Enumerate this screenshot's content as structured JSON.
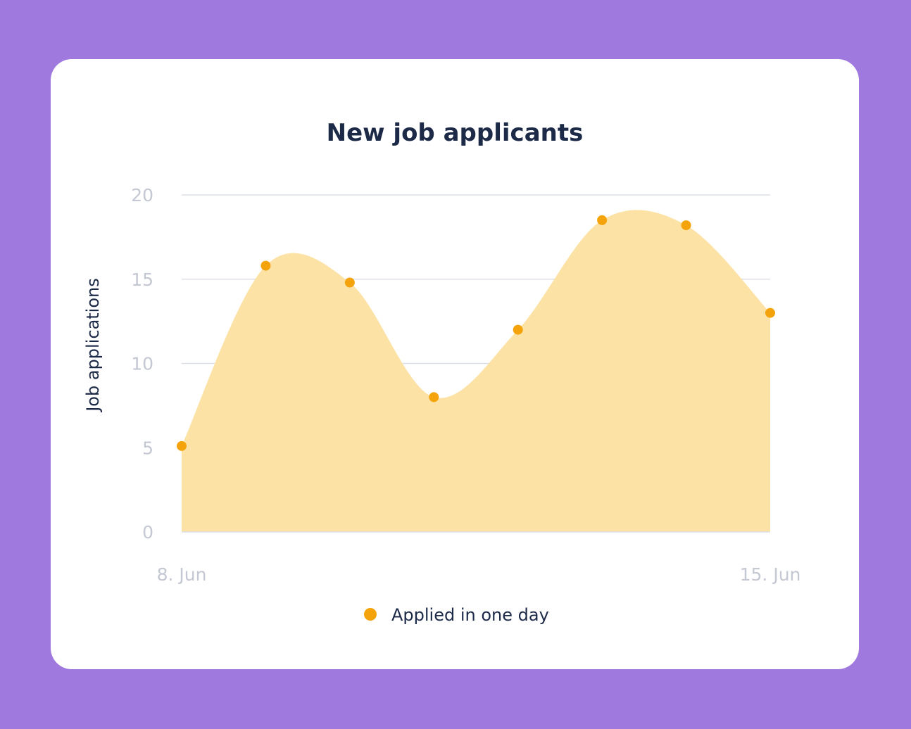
{
  "chart_data": {
    "type": "area",
    "title": "New job applicants",
    "xlabel": "",
    "ylabel": "Job applications",
    "x": [
      "8. Jun",
      "9. Jun",
      "10. Jun",
      "11. Jun",
      "12. Jun",
      "13. Jun",
      "14. Jun",
      "15. Jun"
    ],
    "x_tick_labels": [
      "8. Jun",
      "15. Jun"
    ],
    "y_ticks": [
      0,
      5,
      10,
      15,
      20
    ],
    "ylim": [
      0,
      20
    ],
    "grid": true,
    "legend": "bottom",
    "series": [
      {
        "name": "Applied in one day",
        "values": [
          5.1,
          15.8,
          14.8,
          8.0,
          12.0,
          18.5,
          18.2,
          13.0
        ],
        "line_color": "#f5a30a",
        "fill_color": "#fde2a6"
      }
    ]
  }
}
